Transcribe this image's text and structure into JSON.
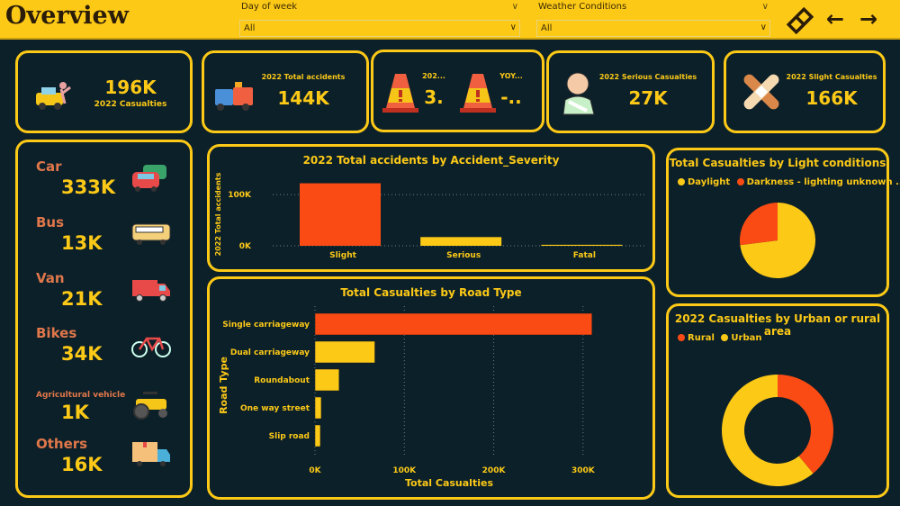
{
  "header": {
    "title": "Overview",
    "nav_icons": [
      "bookmark-icon",
      "arrow-left-icon",
      "arrow-right-icon"
    ]
  },
  "filters": [
    {
      "label": "Day of week",
      "value": "All"
    },
    {
      "label": "Weather Conditions",
      "value": "All"
    }
  ],
  "kpis": {
    "casualties": {
      "value": "196K",
      "label": "2022 Casualties",
      "icon": "car-crash-icon"
    },
    "accidents": {
      "value": "144K",
      "label": "2022 Total accidents",
      "icon": "collision-icon"
    },
    "yoy1": {
      "value": "3.",
      "label": "202...",
      "icon": "warning-cone-icon"
    },
    "yoy2": {
      "value": "-..",
      "label": "YOY...",
      "icon": "warning-cone-icon"
    },
    "serious": {
      "value": "27K",
      "label": "2022 Serious Casualties",
      "icon": "injured-person-icon"
    },
    "slight": {
      "value": "166K",
      "label": "2022 Slight Casualties",
      "icon": "bandage-icon"
    }
  },
  "vehicles": [
    {
      "name": "Car",
      "value": "333K",
      "icon": "car-icon"
    },
    {
      "name": "Bus",
      "value": "13K",
      "icon": "bus-icon"
    },
    {
      "name": "Van",
      "value": "21K",
      "icon": "van-icon"
    },
    {
      "name": "Bikes",
      "value": "34K",
      "icon": "bicycle-icon"
    },
    {
      "name": "Agricultural vehicle",
      "value": "1K",
      "icon": "tractor-icon"
    },
    {
      "name": "Others",
      "value": "16K",
      "icon": "delivery-truck-icon"
    }
  ],
  "colors": {
    "accent": "#fcc917",
    "highlight": "#f94b13",
    "background": "#0c2029",
    "label": "#e0774a"
  },
  "chart_data": [
    {
      "type": "bar",
      "title": "2022 Total accidents by Accident_Severity",
      "ylabel": "2022 Total accidents",
      "xlabel": "",
      "categories": [
        "Slight",
        "Serious",
        "Fatal"
      ],
      "values": [
        122000,
        17000,
        2000
      ],
      "ylim": [
        0,
        130000
      ],
      "yticks": [
        {
          "v": 0,
          "label": "0K"
        },
        {
          "v": 100000,
          "label": "100K"
        }
      ],
      "grid": true
    },
    {
      "type": "bar",
      "orientation": "horizontal",
      "title": "Total Casualties by Road Type",
      "xlabel": "Total Casualties",
      "ylabel": "Road Type",
      "categories": [
        "Single carriageway",
        "Dual carriageway",
        "Roundabout",
        "One way street",
        "Slip road"
      ],
      "values": [
        310000,
        67000,
        27000,
        7000,
        6000
      ],
      "xlim": [
        0,
        320000
      ],
      "xticks": [
        {
          "v": 0,
          "label": "0K"
        },
        {
          "v": 100000,
          "label": "100K"
        },
        {
          "v": 200000,
          "label": "200K"
        },
        {
          "v": 300000,
          "label": "300K"
        }
      ],
      "grid": true
    },
    {
      "type": "pie",
      "title": "Total Casualties by Light conditions",
      "legend": "top",
      "labels": [
        "Daylight",
        "Darkness - lighting unknown ..."
      ],
      "values": [
        73,
        27
      ],
      "colors": [
        "#fcc917",
        "#f94b13"
      ]
    },
    {
      "type": "pie",
      "donut": true,
      "title": "2022 Casualties by Urban or rural area",
      "legend": "top",
      "labels": [
        "Rural",
        "Urban"
      ],
      "values": [
        39,
        61
      ],
      "colors": [
        "#f94b13",
        "#fcc917"
      ]
    }
  ]
}
